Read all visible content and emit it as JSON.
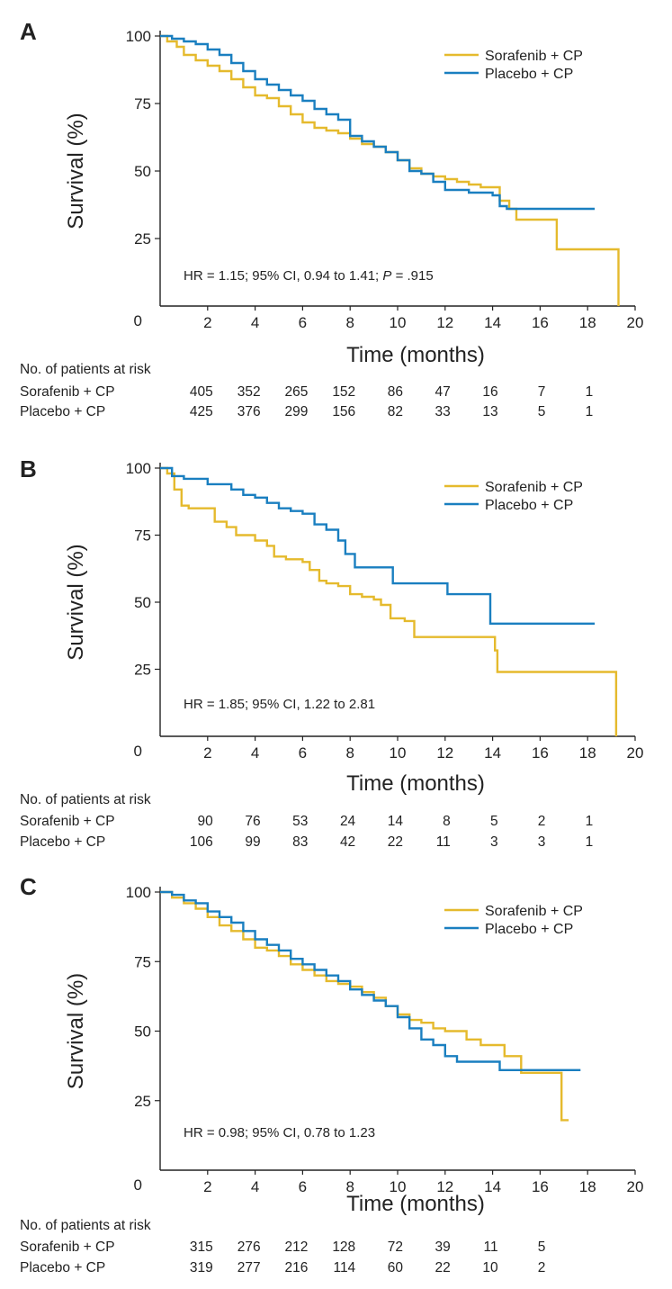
{
  "colors": {
    "sorafenib": "#e5ba2d",
    "placebo": "#1a7fc0",
    "axis": "#222222"
  },
  "risk_header": "No. of patients at risk",
  "chart_data": [
    {
      "type": "line",
      "panel": "A",
      "xlabel": "Time (months)",
      "ylabel": "Survival (%)",
      "xlim": [
        0,
        20
      ],
      "ylim": [
        0,
        100
      ],
      "x_ticks": [
        0,
        2,
        4,
        6,
        8,
        10,
        12,
        14,
        16,
        18,
        20
      ],
      "y_ticks": [
        25,
        50,
        75,
        100
      ],
      "legend": "top-right",
      "annotation_parts": [
        {
          "text": "HR = 1.15; 95% CI, 0.94 to 1.41; ",
          "italic": false
        },
        {
          "text": "P",
          "italic": true
        },
        {
          "text": " = .915",
          "italic": false
        }
      ],
      "series": [
        {
          "name": "Sorafenib + CP",
          "color_key": "sorafenib",
          "points": [
            [
              0,
              100
            ],
            [
              0.3,
              98
            ],
            [
              0.7,
              96
            ],
            [
              1,
              93
            ],
            [
              1.5,
              91
            ],
            [
              2,
              89
            ],
            [
              2.5,
              87
            ],
            [
              3,
              84
            ],
            [
              3.5,
              81
            ],
            [
              4,
              78
            ],
            [
              4.5,
              77
            ],
            [
              5,
              74
            ],
            [
              5.5,
              71
            ],
            [
              6,
              68
            ],
            [
              6.5,
              66
            ],
            [
              7,
              65
            ],
            [
              7.5,
              64
            ],
            [
              8,
              62
            ],
            [
              8.5,
              60
            ],
            [
              9,
              59
            ],
            [
              9.5,
              57
            ],
            [
              10,
              54
            ],
            [
              10.5,
              51
            ],
            [
              11,
              49
            ],
            [
              11.5,
              48
            ],
            [
              12,
              47
            ],
            [
              12.5,
              46
            ],
            [
              13,
              45
            ],
            [
              13.5,
              44
            ],
            [
              14,
              44
            ],
            [
              14.3,
              39
            ],
            [
              14.7,
              36
            ],
            [
              15,
              32
            ],
            [
              16,
              32
            ],
            [
              16.7,
              32
            ],
            [
              16.7,
              21
            ],
            [
              19.3,
              21
            ],
            [
              19.3,
              0
            ]
          ]
        },
        {
          "name": "Placebo + CP",
          "color_key": "placebo",
          "points": [
            [
              0,
              100
            ],
            [
              0.5,
              99
            ],
            [
              1,
              98
            ],
            [
              1.5,
              97
            ],
            [
              2,
              95
            ],
            [
              2.5,
              93
            ],
            [
              3,
              90
            ],
            [
              3.5,
              87
            ],
            [
              4,
              84
            ],
            [
              4.5,
              82
            ],
            [
              5,
              80
            ],
            [
              5.5,
              78
            ],
            [
              6,
              76
            ],
            [
              6.5,
              73
            ],
            [
              7,
              71
            ],
            [
              7.5,
              69
            ],
            [
              8,
              63
            ],
            [
              8.5,
              61
            ],
            [
              9,
              59
            ],
            [
              9.5,
              57
            ],
            [
              10,
              54
            ],
            [
              10.5,
              50
            ],
            [
              11,
              49
            ],
            [
              11.5,
              46
            ],
            [
              12,
              43
            ],
            [
              13,
              42
            ],
            [
              14,
              41
            ],
            [
              14.3,
              37
            ],
            [
              14.6,
              36
            ],
            [
              15,
              36
            ],
            [
              16,
              36
            ],
            [
              17,
              36
            ],
            [
              18.3,
              36
            ]
          ]
        }
      ],
      "at_risk": {
        "times": [
          2,
          4,
          6,
          8,
          10,
          12,
          14,
          16,
          18
        ],
        "rows": [
          {
            "label": "Sorafenib + CP",
            "values": [
              "405",
              "352",
              "265",
              "152",
              "86",
              "47",
              "16",
              "7",
              "1"
            ]
          },
          {
            "label": "Placebo + CP",
            "values": [
              "425",
              "376",
              "299",
              "156",
              "82",
              "33",
              "13",
              "5",
              "1"
            ]
          }
        ]
      }
    },
    {
      "type": "line",
      "panel": "B",
      "xlabel": "Time (months)",
      "ylabel": "Survival (%)",
      "xlim": [
        0,
        20
      ],
      "ylim": [
        0,
        100
      ],
      "x_ticks": [
        0,
        2,
        4,
        6,
        8,
        10,
        12,
        14,
        16,
        18,
        20
      ],
      "y_ticks": [
        25,
        50,
        75,
        100
      ],
      "legend": "top-right",
      "annotation_parts": [
        {
          "text": "HR = 1.85; 95% CI, 1.22 to 2.81",
          "italic": false
        }
      ],
      "series": [
        {
          "name": "Sorafenib + CP",
          "color_key": "sorafenib",
          "points": [
            [
              0,
              100
            ],
            [
              0.3,
              98
            ],
            [
              0.6,
              92
            ],
            [
              0.9,
              86
            ],
            [
              1.2,
              85
            ],
            [
              2,
              85
            ],
            [
              2.3,
              80
            ],
            [
              2.8,
              78
            ],
            [
              3.2,
              75
            ],
            [
              4,
              73
            ],
            [
              4.5,
              71
            ],
            [
              4.8,
              67
            ],
            [
              5.3,
              66
            ],
            [
              6,
              65
            ],
            [
              6.3,
              62
            ],
            [
              6.7,
              58
            ],
            [
              7,
              57
            ],
            [
              7.5,
              56
            ],
            [
              8,
              53
            ],
            [
              8.5,
              52
            ],
            [
              9,
              51
            ],
            [
              9.3,
              49
            ],
            [
              9.7,
              44
            ],
            [
              10.3,
              43
            ],
            [
              10.7,
              37
            ],
            [
              11.5,
              37
            ],
            [
              14,
              37
            ],
            [
              14.1,
              32
            ],
            [
              14.2,
              24
            ],
            [
              15,
              24
            ],
            [
              19.2,
              23
            ],
            [
              19.2,
              0
            ]
          ]
        },
        {
          "name": "Placebo + CP",
          "color_key": "placebo",
          "points": [
            [
              0,
              100
            ],
            [
              0.5,
              97
            ],
            [
              1,
              96
            ],
            [
              2,
              94
            ],
            [
              3,
              92
            ],
            [
              3.5,
              90
            ],
            [
              4,
              89
            ],
            [
              4.5,
              87
            ],
            [
              5,
              85
            ],
            [
              5.5,
              84
            ],
            [
              6,
              83
            ],
            [
              6.5,
              79
            ],
            [
              7,
              77
            ],
            [
              7.5,
              73
            ],
            [
              7.8,
              68
            ],
            [
              8.2,
              63
            ],
            [
              9,
              63
            ],
            [
              9.8,
              63
            ],
            [
              9.8,
              57
            ],
            [
              10.5,
              57
            ],
            [
              12,
              57
            ],
            [
              12.1,
              53
            ],
            [
              13.9,
              53
            ],
            [
              13.9,
              42
            ],
            [
              18.3,
              42
            ]
          ]
        }
      ],
      "at_risk": {
        "times": [
          2,
          4,
          6,
          8,
          10,
          12,
          14,
          16,
          18
        ],
        "rows": [
          {
            "label": "Sorafenib + CP",
            "values": [
              "90",
              "76",
              "53",
              "24",
              "14",
              "8",
              "5",
              "2",
              "1"
            ]
          },
          {
            "label": "Placebo + CP",
            "values": [
              "106",
              "99",
              "83",
              "42",
              "22",
              "11",
              "3",
              "3",
              "1"
            ]
          }
        ]
      }
    },
    {
      "type": "line",
      "panel": "C",
      "xlabel": "Time (months)",
      "ylabel": "Survival (%)",
      "xlim": [
        0,
        20
      ],
      "ylim": [
        0,
        100
      ],
      "x_ticks": [
        0,
        2,
        4,
        6,
        8,
        10,
        12,
        14,
        16,
        18,
        20
      ],
      "y_ticks": [
        25,
        50,
        75,
        100
      ],
      "legend": "top-right",
      "annotation_parts": [
        {
          "text": "HR = 0.98; 95% CI, 0.78 to 1.23",
          "italic": false
        }
      ],
      "series": [
        {
          "name": "Sorafenib + CP",
          "color_key": "sorafenib",
          "points": [
            [
              0,
              100
            ],
            [
              0.5,
              98
            ],
            [
              1,
              96
            ],
            [
              1.5,
              94
            ],
            [
              2,
              91
            ],
            [
              2.5,
              88
            ],
            [
              3,
              86
            ],
            [
              3.5,
              83
            ],
            [
              4,
              80
            ],
            [
              4.5,
              79
            ],
            [
              5,
              77
            ],
            [
              5.5,
              74
            ],
            [
              6,
              72
            ],
            [
              6.5,
              70
            ],
            [
              7,
              68
            ],
            [
              7.5,
              67
            ],
            [
              8,
              66
            ],
            [
              8.5,
              64
            ],
            [
              9,
              62
            ],
            [
              9.5,
              59
            ],
            [
              10,
              56
            ],
            [
              10.5,
              54
            ],
            [
              11,
              53
            ],
            [
              11.5,
              51
            ],
            [
              12,
              50
            ],
            [
              12.8,
              50
            ],
            [
              12.9,
              47
            ],
            [
              13.5,
              45
            ],
            [
              14.5,
              45
            ],
            [
              14.5,
              41
            ],
            [
              15.2,
              41
            ],
            [
              15.2,
              35
            ],
            [
              16.9,
              35
            ],
            [
              16.9,
              18
            ],
            [
              17.2,
              18
            ]
          ]
        },
        {
          "name": "Placebo + CP",
          "color_key": "placebo",
          "points": [
            [
              0,
              100
            ],
            [
              0.5,
              99
            ],
            [
              1,
              97
            ],
            [
              1.5,
              96
            ],
            [
              2,
              93
            ],
            [
              2.5,
              91
            ],
            [
              3,
              89
            ],
            [
              3.5,
              86
            ],
            [
              4,
              83
            ],
            [
              4.5,
              81
            ],
            [
              5,
              79
            ],
            [
              5.5,
              76
            ],
            [
              6,
              74
            ],
            [
              6.5,
              72
            ],
            [
              7,
              70
            ],
            [
              7.5,
              68
            ],
            [
              8,
              65
            ],
            [
              8.5,
              63
            ],
            [
              9,
              61
            ],
            [
              9.5,
              59
            ],
            [
              10,
              55
            ],
            [
              10.5,
              51
            ],
            [
              11,
              47
            ],
            [
              11.5,
              45
            ],
            [
              12,
              41
            ],
            [
              12.5,
              39
            ],
            [
              13,
              39
            ],
            [
              14.3,
              39
            ],
            [
              14.3,
              36
            ],
            [
              16,
              36
            ],
            [
              17.7,
              36
            ]
          ]
        }
      ],
      "at_risk": {
        "times": [
          2,
          4,
          6,
          8,
          10,
          12,
          14,
          16
        ],
        "rows": [
          {
            "label": "Sorafenib + CP",
            "values": [
              "315",
              "276",
              "212",
              "128",
              "72",
              "39",
              "11",
              "5"
            ]
          },
          {
            "label": "Placebo + CP",
            "values": [
              "319",
              "277",
              "216",
              "114",
              "60",
              "22",
              "10",
              "2"
            ]
          }
        ]
      }
    }
  ]
}
